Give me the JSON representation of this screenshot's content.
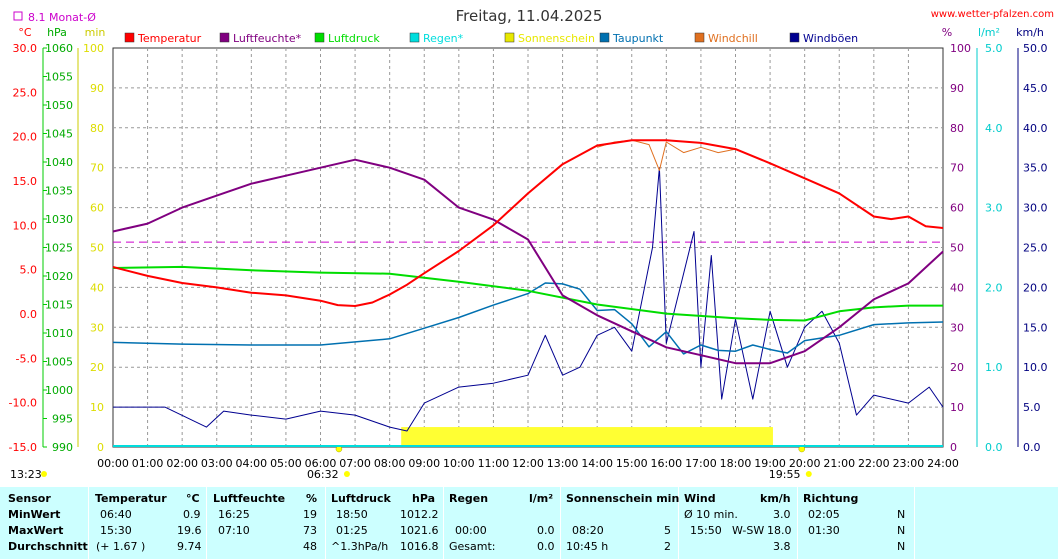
{
  "header": {
    "title": "Freitag, 11.04.2025",
    "website": "www.wetter-pfalzen.com",
    "month_avg": "8.1 Monat-Ø"
  },
  "legend": [
    {
      "name": "Temperatur",
      "color": "#ff0000"
    },
    {
      "name": "Luftfeuchte*",
      "color": "#800080"
    },
    {
      "name": "Luftdruck",
      "color": "#00dd00"
    },
    {
      "name": "Regen*",
      "color": "#00dddd"
    },
    {
      "name": "Sonnenschein",
      "color": "#e8e800"
    },
    {
      "name": "Taupunkt",
      "color": "#0070b0"
    },
    {
      "name": "Windchill",
      "color": "#e07020"
    },
    {
      "name": "Windböen",
      "color": "#000090"
    }
  ],
  "axes": {
    "temp": {
      "unit": "°C",
      "color": "#ff0000",
      "ticks": [
        "30.0",
        "25.0",
        "20.0",
        "15.0",
        "10.0",
        "5.0",
        "0.0",
        "-5.0",
        "-10.0",
        "-15.0"
      ],
      "min": -15,
      "max": 30
    },
    "pressure": {
      "unit": "hPa",
      "color": "#00aa00",
      "ticks": [
        "1060",
        "1055",
        "1050",
        "1045",
        "1040",
        "1035",
        "1030",
        "1025",
        "1020",
        "1015",
        "1010",
        "1005",
        "1000",
        "995",
        "990"
      ],
      "min": 990,
      "max": 1060
    },
    "sun_min": {
      "unit": "min",
      "color": "#cccc00",
      "ticks": [
        "100",
        "90",
        "80",
        "70",
        "60",
        "50",
        "40",
        "30",
        "20",
        "10",
        "0"
      ],
      "min": 0,
      "max": 100
    },
    "humidity": {
      "unit": "%",
      "color": "#800080",
      "ticks": [
        "100",
        "90",
        "80",
        "70",
        "60",
        "50",
        "40",
        "30",
        "20",
        "10",
        "0"
      ],
      "min": 0,
      "max": 100
    },
    "rain": {
      "unit": "l/m²",
      "color": "#00cccc",
      "ticks": [
        "5.0",
        "4.0",
        "3.0",
        "2.0",
        "1.0",
        "0.0"
      ],
      "min": 0,
      "max": 5
    },
    "wind": {
      "unit": "km/h",
      "color": "#000080",
      "ticks": [
        "50.0",
        "45.0",
        "40.0",
        "35.0",
        "30.0",
        "25.0",
        "20.0",
        "15.0",
        "10.0",
        "5.0",
        "0.0"
      ],
      "min": 0,
      "max": 50
    },
    "time_ticks": [
      "00:00",
      "01:00",
      "02:00",
      "03:00",
      "04:00",
      "05:00",
      "06:00",
      "07:00",
      "08:00",
      "09:00",
      "10:00",
      "11:00",
      "12:00",
      "13:00",
      "14:00",
      "15:00",
      "16:00",
      "17:00",
      "18:00",
      "19:00",
      "20:00",
      "21:00",
      "22:00",
      "23:00",
      "24:00"
    ],
    "sunrise": "06:32",
    "sunset": "19:55",
    "moon_label": "13:23"
  },
  "chart_data": {
    "type": "line",
    "x_unit": "hour",
    "month_avg_temp": 8.1,
    "series": [
      {
        "name": "Temperatur",
        "axis": "temp",
        "points": [
          [
            0,
            5.3
          ],
          [
            1,
            4.3
          ],
          [
            2,
            3.5
          ],
          [
            3,
            3.0
          ],
          [
            4,
            2.4
          ],
          [
            5,
            2.1
          ],
          [
            6,
            1.5
          ],
          [
            6.5,
            1.0
          ],
          [
            7,
            0.9
          ],
          [
            7.5,
            1.3
          ],
          [
            8,
            2.2
          ],
          [
            8.5,
            3.3
          ],
          [
            9,
            4.6
          ],
          [
            10,
            7.1
          ],
          [
            11,
            10.0
          ],
          [
            12,
            13.6
          ],
          [
            13,
            16.9
          ],
          [
            14,
            19.0
          ],
          [
            15,
            19.6
          ],
          [
            16,
            19.6
          ],
          [
            17,
            19.3
          ],
          [
            18,
            18.6
          ],
          [
            19,
            17.0
          ],
          [
            20,
            15.3
          ],
          [
            21,
            13.6
          ],
          [
            22,
            11.0
          ],
          [
            22.5,
            10.7
          ],
          [
            23,
            11.0
          ],
          [
            23.5,
            9.9
          ],
          [
            24,
            9.7
          ]
        ]
      },
      {
        "name": "Windchill",
        "axis": "temp",
        "points": [
          [
            14,
            18.8
          ],
          [
            14.5,
            19.4
          ],
          [
            15,
            19.6
          ],
          [
            15.5,
            19.1
          ],
          [
            15.8,
            16.2
          ],
          [
            16,
            19.4
          ],
          [
            16.5,
            18.2
          ],
          [
            17,
            18.8
          ],
          [
            17.5,
            18.2
          ],
          [
            18,
            18.6
          ]
        ]
      },
      {
        "name": "Luftfeuchte*",
        "axis": "humidity",
        "points": [
          [
            0,
            54
          ],
          [
            1,
            56
          ],
          [
            2,
            60
          ],
          [
            3,
            63
          ],
          [
            4,
            66
          ],
          [
            5,
            68
          ],
          [
            6,
            70
          ],
          [
            7,
            72
          ],
          [
            8,
            70
          ],
          [
            9,
            67
          ],
          [
            10,
            60
          ],
          [
            11,
            57
          ],
          [
            12,
            52
          ],
          [
            13,
            38
          ],
          [
            14,
            33
          ],
          [
            15,
            29
          ],
          [
            16,
            25
          ],
          [
            17,
            23
          ],
          [
            18,
            21
          ],
          [
            19,
            21
          ],
          [
            20,
            24
          ],
          [
            21,
            30
          ],
          [
            22,
            37
          ],
          [
            23,
            41
          ],
          [
            24,
            49
          ]
        ]
      },
      {
        "name": "Luftdruck",
        "axis": "pressure",
        "points": [
          [
            0,
            1021.4
          ],
          [
            2,
            1021.6
          ],
          [
            4,
            1021.0
          ],
          [
            6,
            1020.6
          ],
          [
            8,
            1020.4
          ],
          [
            10,
            1019.0
          ],
          [
            12,
            1017.4
          ],
          [
            14,
            1015.0
          ],
          [
            16,
            1013.4
          ],
          [
            18,
            1012.6
          ],
          [
            19,
            1012.3
          ],
          [
            20,
            1012.2
          ],
          [
            21,
            1013.8
          ],
          [
            22,
            1014.5
          ],
          [
            23,
            1014.8
          ],
          [
            24,
            1014.8
          ]
        ]
      },
      {
        "name": "Taupunkt",
        "axis": "temp",
        "points": [
          [
            0,
            -3.2
          ],
          [
            2,
            -3.4
          ],
          [
            4,
            -3.5
          ],
          [
            6,
            -3.5
          ],
          [
            8,
            -2.8
          ],
          [
            9,
            -1.6
          ],
          [
            10,
            -0.4
          ],
          [
            11,
            1.0
          ],
          [
            12,
            2.3
          ],
          [
            12.5,
            3.5
          ],
          [
            13,
            3.4
          ],
          [
            13.5,
            2.8
          ],
          [
            14,
            0.4
          ],
          [
            14.5,
            0.5
          ],
          [
            15,
            -1.1
          ],
          [
            15.5,
            -3.7
          ],
          [
            16,
            -2.0
          ],
          [
            16.5,
            -4.5
          ],
          [
            17,
            -3.5
          ],
          [
            17.5,
            -4.1
          ],
          [
            18,
            -4.2
          ],
          [
            18.5,
            -3.5
          ],
          [
            19,
            -4.0
          ],
          [
            19.5,
            -4.4
          ],
          [
            20,
            -3.0
          ],
          [
            21,
            -2.4
          ],
          [
            22,
            -1.2
          ],
          [
            23,
            -1.0
          ],
          [
            24,
            -0.9
          ]
        ]
      },
      {
        "name": "Windböen",
        "axis": "wind",
        "points": [
          [
            0,
            5.0
          ],
          [
            1.5,
            5.0
          ],
          [
            2.7,
            2.5
          ],
          [
            3.2,
            4.5
          ],
          [
            4,
            4.0
          ],
          [
            5,
            3.5
          ],
          [
            6,
            4.5
          ],
          [
            7,
            4.0
          ],
          [
            8,
            2.5
          ],
          [
            8.5,
            2.0
          ],
          [
            9,
            5.5
          ],
          [
            10,
            7.5
          ],
          [
            11,
            8.0
          ],
          [
            12,
            9.0
          ],
          [
            12.5,
            14.0
          ],
          [
            13,
            9.0
          ],
          [
            13.5,
            10.0
          ],
          [
            14,
            14.0
          ],
          [
            14.5,
            15.0
          ],
          [
            15,
            12.0
          ],
          [
            15.6,
            25.0
          ],
          [
            15.8,
            35.0
          ],
          [
            16,
            13.0
          ],
          [
            16.4,
            20.0
          ],
          [
            16.8,
            27.0
          ],
          [
            17,
            10.0
          ],
          [
            17.3,
            24.0
          ],
          [
            17.6,
            6.0
          ],
          [
            18,
            16.0
          ],
          [
            18.5,
            6.0
          ],
          [
            19,
            17.0
          ],
          [
            19.5,
            10.0
          ],
          [
            20,
            15.0
          ],
          [
            20.5,
            17.0
          ],
          [
            21,
            13.0
          ],
          [
            21.5,
            4.0
          ],
          [
            22,
            6.5
          ],
          [
            23,
            5.5
          ],
          [
            23.6,
            7.5
          ],
          [
            24,
            5.0
          ]
        ]
      },
      {
        "name": "Sonnenschein",
        "axis": "sun_min",
        "range": [
          "08:20",
          "19:05"
        ]
      }
    ]
  },
  "stats": {
    "headers": {
      "sensor": "Sensor",
      "temperatur": "Temperatur",
      "temp_unit": "°C",
      "luftfeuchte": "Luftfeuchte",
      "hum_unit": "%",
      "luftdruck": "Luftdruck",
      "press_unit": "hPa",
      "regen": "Regen",
      "rain_unit": "l/m²",
      "sonne": "Sonnenschein min",
      "wind": "Wind",
      "wind_unit": "km/h",
      "richtung": "Richtung"
    },
    "min": {
      "label": "MinWert",
      "temp_time": "06:40",
      "temp_val": "0.9",
      "hum_time": "16:25",
      "hum_val": "19",
      "press_time": "18:50",
      "press_val": "1012.2",
      "wind_time": "Ø 10 min.",
      "wind_val": "3.0",
      "dir_time": "02:05",
      "dir_val": "N"
    },
    "max": {
      "label": "MaxWert",
      "temp_time": "15:30",
      "temp_val": "19.6",
      "hum_time": "07:10",
      "hum_val": "73",
      "press_time": "01:25",
      "press_val": "1021.6",
      "rain_time": "00:00",
      "rain_val": "0.0",
      "sun_time": "08:20",
      "sun_val": "5",
      "wind_time": "15:50",
      "wind_dir": "W-SW",
      "wind_val": "18.0",
      "dir_time": "01:30",
      "dir_val": "N"
    },
    "avg": {
      "label": "Durchschnitt",
      "temp_delta": "(+ 1.67 )",
      "temp_val": "9.74",
      "hum_val": "48",
      "press_trend": "^1.3hPa/h",
      "press_val": "1016.8",
      "rain_label": "Gesamt:",
      "rain_val": "0.0",
      "sun_time": "10:45 h",
      "sun_val": "2",
      "wind_val": "3.8",
      "dir_val": "N"
    }
  }
}
